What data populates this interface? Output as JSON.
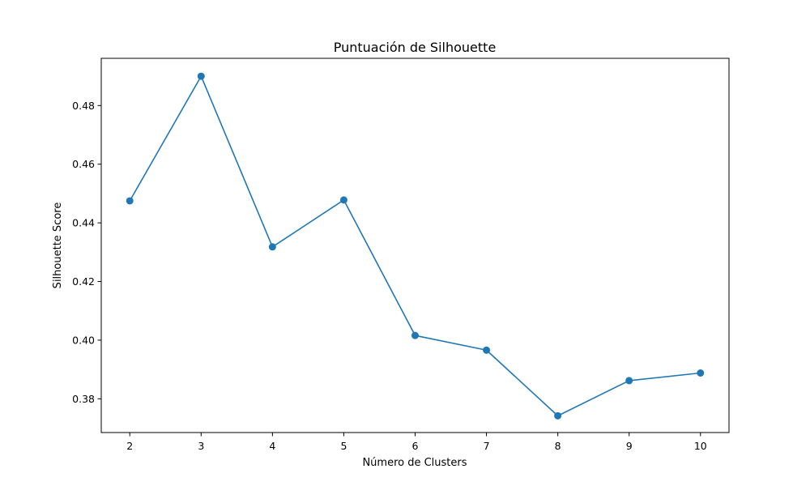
{
  "chart_data": {
    "type": "line",
    "title": "Puntuación de Silhouette",
    "xlabel": "Número de Clusters",
    "ylabel": "Silhouette Score",
    "x": [
      2,
      3,
      4,
      5,
      6,
      7,
      8,
      9,
      10
    ],
    "series": [
      {
        "values": [
          0.4475,
          0.49,
          0.4318,
          0.4478,
          0.4016,
          0.3966,
          0.3742,
          0.3862,
          0.3888
        ],
        "color": "#1f77b4",
        "marker": "circle"
      }
    ],
    "xticks": [
      "2",
      "3",
      "4",
      "5",
      "6",
      "7",
      "8",
      "9",
      "10"
    ],
    "yticks": [
      "0.38",
      "0.40",
      "0.42",
      "0.44",
      "0.46",
      "0.48"
    ],
    "xlim": [
      1.6,
      10.4
    ],
    "ylim": [
      0.3685,
      0.4961
    ],
    "grid": false
  }
}
